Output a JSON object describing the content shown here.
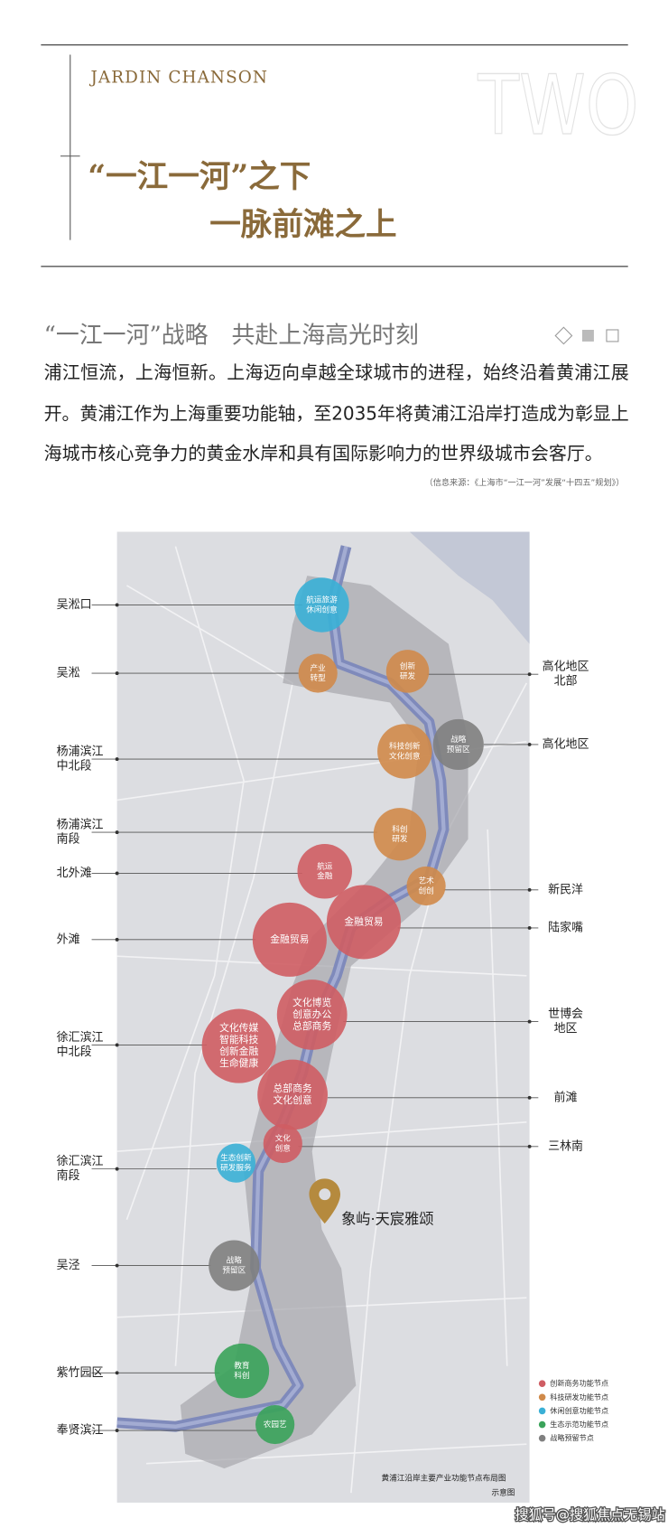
{
  "header": {
    "brand": "JARDIN CHANSON",
    "watermark": "TWO",
    "title": [
      "“一江一河”之下",
      "一脉前滩之上"
    ]
  },
  "intro": {
    "heading": "“一江一河”战略　共赴上海高光时刻",
    "paragraph": [
      "浦江恒流，上海恒新。上海迈向卓越全球城市的进程，始终沿着黄浦江展",
      "开。黄浦江作为上海重要功能轴，至2035年将黄浦江沿岸打造成为彰显上",
      "海城市核心竞争力的黄金水岸和具有国际影响力的世界级城市会客厅。"
    ],
    "source": "（信息来源：《上海市“一江一河”发展“十四五”规划》）"
  },
  "map": {
    "left_labels": [
      [
        "吴淞口"
      ],
      [
        "吴淞"
      ],
      [
        "杨浦滨江",
        "中北段"
      ],
      [
        "杨浦滨江",
        "南段"
      ],
      [
        "北外滩"
      ],
      [
        "外滩"
      ],
      [
        "徐汇滨江",
        "中北段"
      ],
      [
        "徐汇滨江",
        "南段"
      ],
      [
        "吴泾"
      ],
      [
        "紫竹园区"
      ],
      [
        "奉贤滨江"
      ]
    ],
    "right_labels": [
      [
        "高化地区",
        "北部"
      ],
      [
        "高化地区"
      ],
      [
        "新民洋"
      ],
      [
        "陆家嘴"
      ],
      [
        "世博会",
        "地区"
      ],
      [
        "前滩"
      ],
      [
        "三林南"
      ]
    ],
    "nodes": [
      {
        "label": [
          "航运旅游",
          "休闲创意"
        ]
      },
      {
        "label": [
          "产业",
          "转型"
        ]
      },
      {
        "label": [
          "创新",
          "研发"
        ]
      },
      {
        "label": [
          "战略",
          "预留区"
        ]
      },
      {
        "label": [
          "科技创新",
          "文化创意"
        ]
      },
      {
        "label": [
          "科创",
          "研发"
        ]
      },
      {
        "label": [
          "航运",
          "金融"
        ]
      },
      {
        "label": [
          "艺术",
          "创创"
        ]
      },
      {
        "label": [
          "金融贸易"
        ]
      },
      {
        "label": [
          "金融贸易"
        ]
      },
      {
        "label": [
          "文化博览",
          "创意办公",
          "总部商务"
        ]
      },
      {
        "label": [
          "文化传媒",
          "智能科技",
          "创新金融",
          "生命健康"
        ]
      },
      {
        "label": [
          "总部商务",
          "文化创意"
        ]
      },
      {
        "label": [
          "文化",
          "创意"
        ]
      },
      {
        "label": [
          "生态创新",
          "研发服务"
        ]
      },
      {
        "label": [
          "战略",
          "预留区"
        ]
      },
      {
        "label": [
          "教育",
          "科创"
        ]
      },
      {
        "label": [
          "农园艺"
        ]
      }
    ],
    "project": "象屿·天宸雅颂",
    "legend": [
      "创新商务功能节点",
      "科技研发功能节点",
      "休闲创意功能节点",
      "生态示范功能节点",
      "战略预留节点"
    ],
    "caption": [
      "黄浦江沿岸主要产业功能节点布局图",
      "示意图"
    ]
  },
  "footer": {
    "watermark": "搜狐号@搜狐焦点无锡站"
  }
}
